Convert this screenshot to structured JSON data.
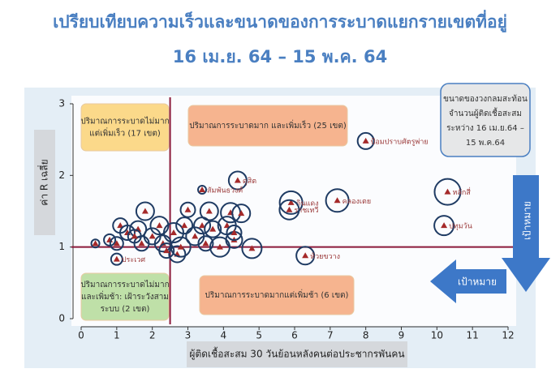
{
  "chart_data": {
    "type": "scatter",
    "title": "เปรียบเทียบความเร็วและขนาดของการระบาดแยกรายเขตที่อยู่",
    "subtitle": "16 เม.ย. 64 – 15 พ.ค. 64",
    "xlabel": "ผู้ติดเชื้อสะสม 30 วันย้อนหลังคนต่อประชากรพันคน",
    "ylabel": "ค่า R เฉลี่ย",
    "xlim": [
      0,
      12
    ],
    "xticks": [
      0,
      1,
      2,
      3,
      4,
      5,
      6,
      7,
      8,
      9,
      10,
      11,
      12
    ],
    "ylim": [
      0,
      3
    ],
    "yticks": [
      0,
      1,
      2,
      3
    ],
    "vline": 2.5,
    "hline": 1,
    "line_color": "#8b1a3a",
    "marker_color": "#a52a2a",
    "circle_color": "#1f3b63",
    "x": [
      8.0,
      10.3,
      10.2,
      4.4,
      7.2,
      5.9,
      5.85,
      6.3,
      3.4,
      1.0,
      0.4,
      0.8,
      1.1,
      1.0,
      1.3,
      1.6,
      1.7,
      1.8,
      2.0,
      2.2,
      2.3,
      2.6,
      2.7,
      2.8,
      3.0,
      3.2,
      3.4,
      3.6,
      3.7,
      3.9,
      4.2,
      4.3,
      4.1,
      4.8,
      4.5,
      2.4,
      1.5,
      3.5,
      2.9,
      4.3
    ],
    "y": [
      2.48,
      1.77,
      1.3,
      1.93,
      1.65,
      1.62,
      1.52,
      0.88,
      1.8,
      0.83,
      1.05,
      1.1,
      1.3,
      1.05,
      1.2,
      1.25,
      1.05,
      1.5,
      1.15,
      1.3,
      1.05,
      1.2,
      0.9,
      1.0,
      1.52,
      1.15,
      1.3,
      1.5,
      1.25,
      1.0,
      1.48,
      1.1,
      1.3,
      0.98,
      1.47,
      0.95,
      1.15,
      1.05,
      1.3,
      1.2
    ],
    "sizes": [
      10,
      16,
      12,
      11,
      14,
      14,
      12,
      11,
      5,
      7,
      5,
      7,
      9,
      8,
      9,
      10,
      9,
      11,
      10,
      11,
      10,
      12,
      10,
      12,
      9,
      11,
      10,
      11,
      10,
      12,
      12,
      10,
      11,
      12,
      11,
      9,
      8,
      9,
      10,
      9
    ],
    "labels": [
      "ป้อมปราบศัตรูพ่าย",
      "หลักสี่",
      "ปทุมวัน",
      "ดุสิต",
      "คลองเตย",
      "ดินแดง",
      "ราชเทวี",
      "ห้วยขวาง",
      "สัมพันธวงศ์",
      "ประเวศ",
      null,
      null,
      null,
      null,
      null,
      null,
      null,
      null,
      null,
      null,
      null,
      null,
      null,
      null,
      null,
      null,
      null,
      null,
      null,
      null,
      null,
      null,
      null,
      null,
      null,
      null,
      null,
      null,
      null,
      null
    ],
    "annotations": [
      [
        "ปริมาณการระบาดไม่มาก",
        "แต่เพิ่มเร็ว (17 เขต)"
      ],
      [
        "ปริมาณการระบาดมาก และเพิ่มเร็ว (25 เขต)"
      ],
      [
        "ปริมาณการระบาดไม่มาก",
        "และเพิ่มช้า: เฝ้าระวังสาม",
        "ระบบ (2 เขต)"
      ],
      [
        "ปริมาณการระบาดมากแต่เพิ่มช้า (6 เขต)"
      ]
    ],
    "size_note": [
      "ขนาดของวงกลมสะท้อน",
      "จำนวนผู้ติดเชื้อสะสม",
      "ระหว่าง 16 เม.ย.64 –",
      "15 พ.ค.64"
    ],
    "targets": [
      "เป้าหมาย",
      "เป้าหมาย"
    ]
  }
}
